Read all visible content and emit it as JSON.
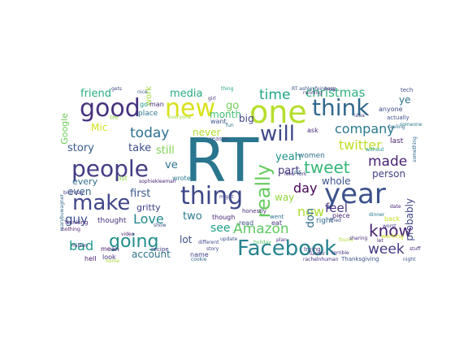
{
  "words": [
    {
      "t": "RT",
      "c": "#2a768e"
    },
    {
      "t": "year",
      "c": "#3b528b"
    },
    {
      "t": "one",
      "c": "#b5de2b"
    },
    {
      "t": "people",
      "c": "#433d84"
    },
    {
      "t": "thing",
      "c": "#3e4989"
    },
    {
      "t": "good",
      "c": "#46327e"
    },
    {
      "t": "new",
      "c": "#d8e219"
    },
    {
      "t": "think",
      "c": "#31688e"
    },
    {
      "t": "Facebook",
      "c": "#26828e"
    },
    {
      "t": "make",
      "c": "#404688"
    },
    {
      "t": "really",
      "c": "#65cb5e"
    },
    {
      "t": "will",
      "c": "#3f4889"
    },
    {
      "t": "going",
      "c": "#218e8d"
    },
    {
      "t": "tweet",
      "c": "#35b779"
    },
    {
      "t": "know",
      "c": "#482173"
    },
    {
      "t": "Amazon",
      "c": "#5ec962"
    },
    {
      "t": "time",
      "c": "#21a685"
    },
    {
      "t": "christmas",
      "c": "#2db27d"
    },
    {
      "t": "today",
      "c": "#2d708e"
    },
    {
      "t": "company",
      "c": "#2a788e"
    },
    {
      "t": "made",
      "c": "#481f70"
    },
    {
      "t": "week",
      "c": "#453781"
    },
    {
      "t": "now",
      "c": "#addc30"
    },
    {
      "t": "twitter",
      "c": "#bddf26"
    },
    {
      "t": "day",
      "c": "#440154"
    },
    {
      "t": "Love",
      "c": "#23888e"
    },
    {
      "t": "bad",
      "c": "#1f9a8a"
    },
    {
      "t": "media",
      "c": "#26ad81"
    },
    {
      "t": "friend",
      "c": "#27ad81"
    },
    {
      "t": "story",
      "c": "#365c8d"
    },
    {
      "t": "first",
      "c": "#38598c"
    },
    {
      "t": "guy",
      "c": "#3a548c"
    },
    {
      "t": "feel",
      "c": "#46337f"
    },
    {
      "t": "account",
      "c": "#2c728e"
    },
    {
      "t": "still",
      "c": "#7fd34e"
    },
    {
      "t": "take",
      "c": "#3c4f8a"
    },
    {
      "t": "see",
      "c": "#1fa088"
    },
    {
      "t": "ve",
      "c": "#2c738e"
    },
    {
      "t": "month",
      "c": "#44bf70"
    },
    {
      "t": "never",
      "c": "#b2dd2d"
    },
    {
      "t": "go",
      "c": "#73d056"
    },
    {
      "t": "big",
      "c": "#414487"
    },
    {
      "t": "two",
      "c": "#287d8e"
    },
    {
      "t": "yeah",
      "c": "#1f958b"
    },
    {
      "t": "part",
      "c": "#453882"
    },
    {
      "t": "person",
      "c": "#424186"
    },
    {
      "t": "whole",
      "c": "#3a538b"
    },
    {
      "t": "probably",
      "c": "#3f4788"
    },
    {
      "t": "even",
      "c": "#33628d"
    },
    {
      "t": "every",
      "c": "#2e6e8e"
    },
    {
      "t": "Mic",
      "c": "#d2e21b"
    },
    {
      "t": "Google",
      "c": "#6ece58"
    },
    {
      "t": "lot",
      "c": "#3d4d8a"
    },
    {
      "t": "don",
      "c": "#2f6c8e"
    },
    {
      "t": "way",
      "c": "#95d840"
    },
    {
      "t": "ye",
      "c": "#2c718e"
    },
    {
      "t": "gritty",
      "c": "#424086"
    },
    {
      "t": "thought",
      "c": "#46307e"
    },
    {
      "t": "work",
      "c": "#a2da37"
    },
    {
      "t": "place",
      "c": "#2b758e"
    },
    {
      "t": "right",
      "c": "#31678e"
    },
    {
      "t": "women",
      "c": "#2e6f8e"
    },
    {
      "t": "last",
      "c": "#481d6f"
    },
    {
      "t": "anyone",
      "c": "#3d4e8a"
    },
    {
      "t": "back",
      "c": "#c8e020"
    },
    {
      "t": "read",
      "c": "#3b518b"
    },
    {
      "t": "name",
      "c": "#404387"
    },
    {
      "t": "look",
      "c": "#462f7e"
    },
    {
      "t": "though",
      "c": "#482475"
    },
    {
      "t": "wrote",
      "c": "#29798e"
    },
    {
      "t": "list",
      "c": "#8bd646"
    },
    {
      "t": "go",
      "c": "#1e9c89"
    },
    {
      "t": "man",
      "c": "#472c7a"
    },
    {
      "t": "want",
      "c": "#3b528b"
    },
    {
      "t": "mean",
      "c": "#48186a"
    },
    {
      "t": "hell",
      "c": "#481b6d"
    },
    {
      "t": "eat",
      "c": "#453581"
    },
    {
      "t": "us",
      "c": "#297b8e"
    },
    {
      "t": "piece",
      "c": "#482677"
    },
    {
      "t": "ask",
      "c": "#482979"
    },
    {
      "t": "honestly",
      "c": "#472d7b"
    },
    {
      "t": "went",
      "c": "#2e6d8e"
    },
    {
      "t": "thinking",
      "c": "#482878"
    },
    {
      "t": "reason",
      "c": "#3e4a89"
    },
    {
      "t": "life",
      "c": "#90d743"
    },
    {
      "t": "recipe",
      "c": "#443a83"
    },
    {
      "t": "actually",
      "c": "#3c508b"
    },
    {
      "t": "tech",
      "c": "#3e4c8a"
    },
    {
      "t": "Thanksgiving",
      "c": "#3a548c"
    },
    {
      "t": "working",
      "c": "#d0e11c"
    },
    {
      "t": "trying",
      "c": "#443983"
    },
    {
      "t": "sophiekleeman",
      "c": "#482374"
    },
    {
      "t": "million",
      "c": "#472a7a"
    },
    {
      "t": "holiday",
      "c": "#52c569"
    },
    {
      "t": "Tumblr",
      "c": "#46327e"
    },
    {
      "t": "RT ashleyfeinberg",
      "c": "#3a548c"
    },
    {
      "t": "marybuwagner",
      "c": "#31688e"
    },
    {
      "t": "running",
      "c": "#482475"
    },
    {
      "t": "everyone",
      "c": "#9bd93c"
    },
    {
      "t": "birthday",
      "c": "#443b84"
    },
    {
      "t": "thing",
      "c": "#22a785"
    },
    {
      "t": "someone",
      "c": "#2a778e"
    },
    {
      "t": "girl",
      "c": "#472f7d"
    },
    {
      "t": "update",
      "c": "#3b528b"
    },
    {
      "t": "home",
      "c": "#a8db34"
    },
    {
      "t": "plan",
      "c": "#472a7a"
    },
    {
      "t": "different",
      "c": "#3e4989"
    },
    {
      "t": "feeling",
      "c": "#2f6b8e"
    },
    {
      "t": "nothing",
      "c": "#481668"
    },
    {
      "t": "found",
      "c": "#addc30"
    },
    {
      "t": "terrible",
      "c": "#46307e"
    },
    {
      "t": "night",
      "c": "#3b528b"
    },
    {
      "t": "something",
      "c": "#31688e"
    },
    {
      "t": "without",
      "c": "#20928c"
    },
    {
      "t": "date",
      "c": "#482576"
    },
    {
      "t": "worst",
      "c": "#463480"
    },
    {
      "t": "let",
      "c": "#482878"
    },
    {
      "t": "show",
      "c": "#3b528b"
    },
    {
      "t": "New York",
      "c": "#46337f"
    },
    {
      "t": "rachelnhuman",
      "c": "#472e7c"
    },
    {
      "t": "gets",
      "c": "#3e4989"
    },
    {
      "t": "easy",
      "c": "#472c7a"
    },
    {
      "t": "sharing",
      "c": "#472d7b"
    },
    {
      "t": "tried",
      "c": "#3c4f8a"
    },
    {
      "t": "cookie",
      "c": "#31688e"
    },
    {
      "t": "fun",
      "c": "#2a788e"
    },
    {
      "t": "idea",
      "c": "#414487"
    },
    {
      "t": "nice",
      "c": "#365d8d"
    },
    {
      "t": "video",
      "c": "#481a6c"
    },
    {
      "t": "dinner",
      "c": "#2b758e"
    },
    {
      "t": "stuff",
      "c": "#482979"
    },
    {
      "t": "might",
      "c": "#433e85"
    },
    {
      "t": "story",
      "c": "#3e4a89"
    },
    {
      "t": "play",
      "c": "#22a884"
    }
  ]
}
